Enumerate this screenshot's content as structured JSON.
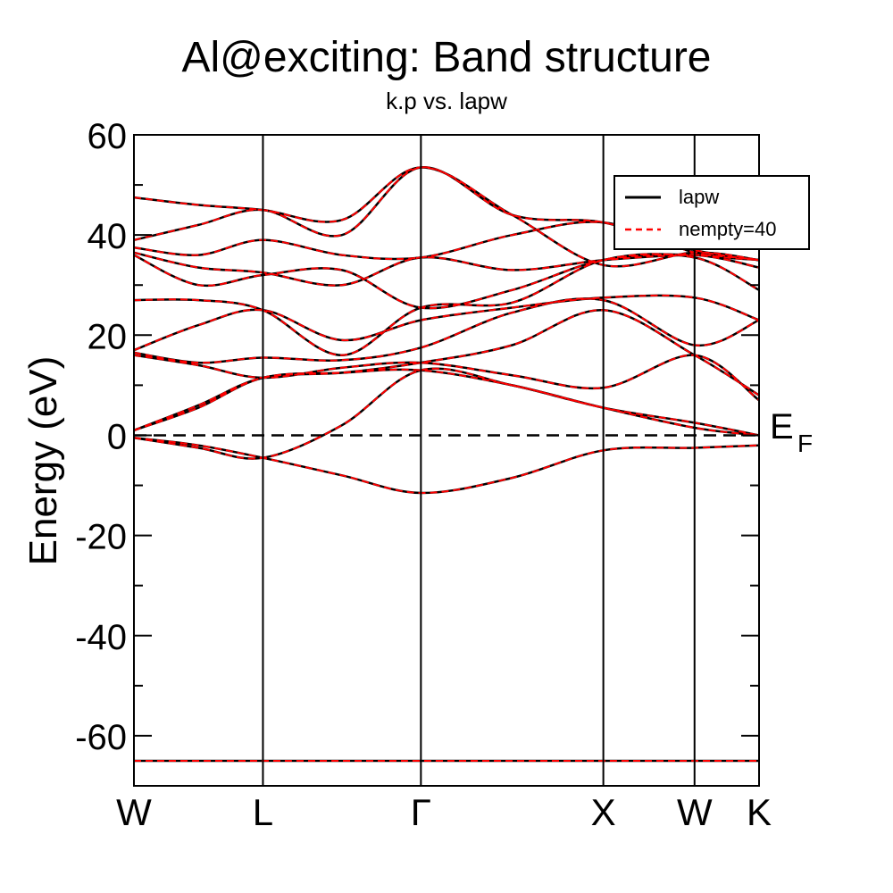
{
  "chart_data": {
    "type": "line",
    "title": "Al@exciting: Band structure",
    "subtitle": "k.p vs. lapw",
    "ylabel": "Energy (eV)",
    "xlabel": "",
    "ylim": [
      -70,
      60
    ],
    "yticks": [
      60,
      40,
      20,
      0,
      -20,
      -40,
      -60
    ],
    "ytick_labels": [
      "60",
      "40",
      "20",
      "0",
      "-20",
      "-40",
      "-60"
    ],
    "kpoints": [
      {
        "label": "W",
        "pos": 0.0
      },
      {
        "label": "L",
        "pos": 0.7071
      },
      {
        "label": "Γ",
        "pos": 1.5731
      },
      {
        "label": "X",
        "pos": 2.5731
      },
      {
        "label": "W",
        "pos": 3.0731
      },
      {
        "label": "K",
        "pos": 3.4267
      }
    ],
    "xlim": [
      0,
      3.4267
    ],
    "fermi_level": {
      "value": 0,
      "label": "E",
      "subscript": "F"
    },
    "legend": {
      "placement": "top-right"
    },
    "series": [
      {
        "name": "lapw",
        "color": "#000000",
        "dash": "solid"
      },
      {
        "name": "nempty=40",
        "color": "#ff0000",
        "dash": "dashed"
      }
    ],
    "bands": [
      [
        -0.5,
        -2.0,
        -4.5,
        -8.0,
        -11.5,
        -8.5,
        -3.0,
        -2.5,
        -2.0
      ],
      [
        -0.5,
        -2.5,
        -4.5,
        2.0,
        13.0,
        10.0,
        5.5,
        2.5,
        0.0
      ],
      [
        1.0,
        5.5,
        11.5,
        12.5,
        13.0,
        10.0,
        5.5,
        1.5,
        0.0
      ],
      [
        1.0,
        6.0,
        11.5,
        12.5,
        14.5,
        18.0,
        25.0,
        16.0,
        8.0
      ],
      [
        16.0,
        14.0,
        11.5,
        13.5,
        14.5,
        12.0,
        9.5,
        16.0,
        7.0
      ],
      [
        16.5,
        14.5,
        15.5,
        15.0,
        17.5,
        24.5,
        27.0,
        18.0,
        23.0
      ],
      [
        17.0,
        22.0,
        25.0,
        19.0,
        23.0,
        25.5,
        27.5,
        27.5,
        23.0
      ],
      [
        27.0,
        27.0,
        25.0,
        16.0,
        25.5,
        26.5,
        35.0,
        35.5,
        29.0
      ],
      [
        36.0,
        30.0,
        32.0,
        33.0,
        25.5,
        29.0,
        35.0,
        36.0,
        33.5
      ],
      [
        36.5,
        33.5,
        32.5,
        30.0,
        35.5,
        33.0,
        35.0,
        36.0,
        35.0
      ],
      [
        37.5,
        36.0,
        39.0,
        36.0,
        35.5,
        40.0,
        42.5,
        36.5,
        35.0
      ],
      [
        39.0,
        42.0,
        45.0,
        40.0,
        53.5,
        44.0,
        42.5,
        37.0,
        35.0
      ],
      [
        47.5,
        46.0,
        45.0,
        43.0,
        53.5,
        44.0,
        34.0,
        36.5,
        35.0
      ]
    ],
    "semicore": [
      -65,
      -65,
      -65,
      -65,
      -65,
      -65,
      -65,
      -65,
      -65
    ]
  }
}
